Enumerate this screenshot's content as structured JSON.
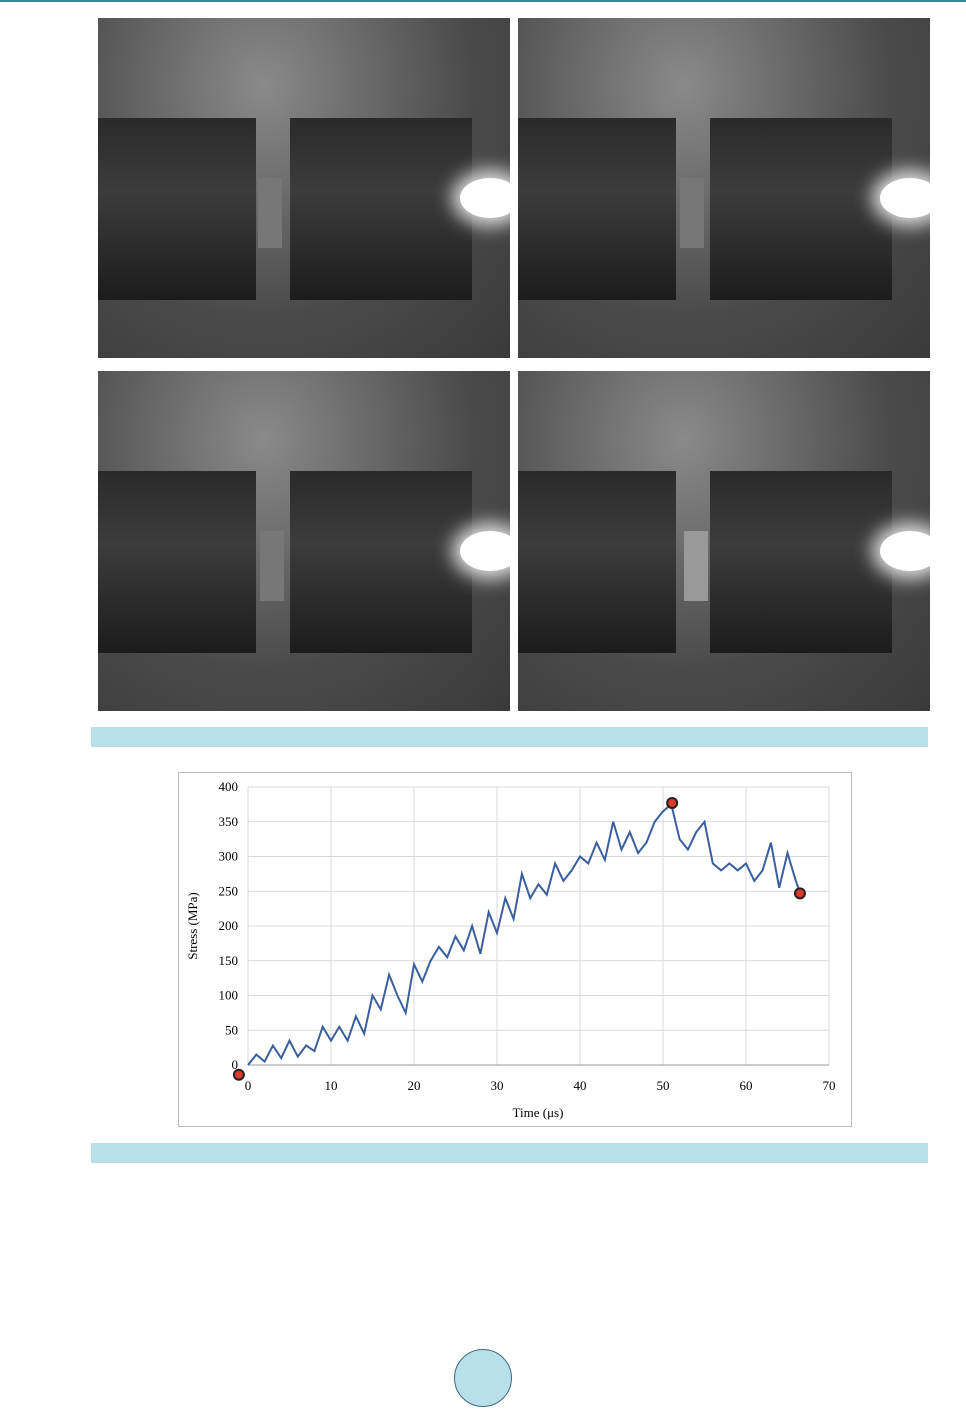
{
  "chart_data": {
    "type": "line",
    "xlabel": "Time (μs)",
    "ylabel": "Stress (MPa)",
    "x": [
      0,
      1,
      2,
      3,
      4,
      5,
      6,
      7,
      8,
      9,
      10,
      11,
      12,
      13,
      14,
      15,
      16,
      17,
      18,
      19,
      20,
      21,
      22,
      23,
      24,
      25,
      26,
      27,
      28,
      29,
      30,
      31,
      32,
      33,
      34,
      35,
      36,
      37,
      38,
      39,
      40,
      41,
      42,
      43,
      44,
      45,
      46,
      47,
      48,
      49,
      50,
      51,
      52,
      53,
      54,
      55,
      56,
      57,
      58,
      59,
      60,
      61,
      62,
      63,
      64,
      65,
      66,
      66.5
    ],
    "series": [
      {
        "color": "#3a5f9e",
        "values": [
          0,
          15,
          5,
          28,
          10,
          35,
          12,
          28,
          20,
          55,
          35,
          55,
          35,
          70,
          45,
          100,
          80,
          130,
          100,
          75,
          145,
          120,
          150,
          170,
          155,
          185,
          165,
          200,
          160,
          220,
          190,
          240,
          210,
          275,
          240,
          260,
          245,
          290,
          265,
          280,
          300,
          290,
          320,
          295,
          350,
          310,
          335,
          305,
          320,
          350,
          365,
          375,
          325,
          310,
          335,
          350,
          290,
          280,
          290,
          280,
          290,
          265,
          280,
          320,
          255,
          305,
          265,
          248
        ]
      }
    ],
    "points": {
      "color": "#d93a2b",
      "x": [
        -1.1,
        51.1,
        66.5
      ],
      "y": [
        -14,
        377,
        247
      ]
    },
    "xlim": [
      0,
      70
    ],
    "xticks": [
      0,
      10,
      20,
      30,
      40,
      50,
      60,
      70
    ],
    "ylim": [
      0,
      400
    ],
    "yticks": [
      0,
      50,
      100,
      150,
      200,
      250,
      300,
      350,
      400
    ],
    "grid": true
  }
}
